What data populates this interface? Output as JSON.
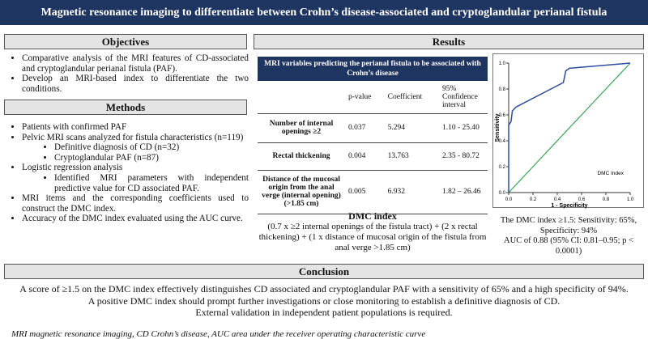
{
  "header": {
    "title": "Magnetic resonance imaging to differentiate between Crohn’s disease-associated and cryptoglandular perianal fistula"
  },
  "objectives": {
    "title": "Objectives",
    "items": [
      {
        "text": "Comparative analysis of the MRI features of CD-associated and cryptoglandular perianal fistula (PAF)."
      },
      {
        "text": "Develop an MRI-based index to differentiate the two conditions."
      }
    ]
  },
  "methods": {
    "title": "Methods",
    "items": [
      {
        "text": "Patients with confirmed PAF"
      },
      {
        "text": "Pelvic MRI scans analyzed for fistula characteristics (n=119)",
        "sub": [
          "Definitive diagnosis of CD (n=32)",
          "Cryptoglandular PAF (n=87)"
        ]
      },
      {
        "text": "Logistic regression analysis",
        "sub": [
          "Identified MRI parameters with independent predictive value for CD associated PAF."
        ]
      },
      {
        "text": "MRI items and the corresponding coefficients used to construct the DMC index."
      },
      {
        "text": "Accuracy of the DMC index evaluated using the AUC curve."
      }
    ]
  },
  "results": {
    "title": "Results",
    "table": {
      "title": "MRI variables predicting the perianal fistula to be associated with Crohn’s disease",
      "columns": [
        "p-value",
        "Coefficient",
        "95% Confidence interval"
      ],
      "rows": [
        [
          "Number of internal openings ≥2",
          "0.037",
          "5.294",
          "1.10 - 25.40"
        ],
        [
          "Rectal thickening",
          "0.004",
          "13.763",
          "2.35 - 80.72"
        ],
        [
          "Distance of the mucosal origin from the anal verge (internal opening) (>1.85 cm)",
          "0.005",
          "6.932",
          "1.82 – 26.46"
        ]
      ]
    },
    "dmc": {
      "title": "DMC index",
      "text": "(0.7 x ≥2 internal openings of the fistula tract) + (2 x rectal thickening) + (1 x distance of mucosal origin of the fistula from anal verge >1.85 cm)"
    },
    "roc_caption": [
      "The DMC index ≥1.5: Sensitivity: 65%, Specificity: 94%",
      "AUC of 0.88 (95% CI: 0.81–0.95; p < 0.0001)"
    ]
  },
  "chart_data": {
    "type": "line",
    "xlabel": "1 - Specificity",
    "ylabel": "Sensitivity",
    "xlim": [
      0,
      1
    ],
    "ylim": [
      0,
      1
    ],
    "xticks": [
      {
        "value": 0,
        "label": "0.0"
      },
      0.2,
      0.4,
      0.6,
      0.8,
      {
        "value": 1,
        "label": "1.0"
      }
    ],
    "yticks": [
      {
        "value": 0,
        "label": "0.0"
      },
      0.2,
      0.4,
      0.6,
      0.8,
      {
        "value": 1,
        "label": "1.0"
      }
    ],
    "series": [
      {
        "name": "DMC Index",
        "color": "#2f4da0",
        "x": [
          0,
          0,
          0.02,
          0.03,
          0.06,
          0.1,
          0.45,
          0.47,
          0.5,
          1
        ],
        "values": [
          0,
          0.52,
          0.55,
          0.63,
          0.66,
          0.68,
          0.85,
          0.94,
          0.96,
          1
        ]
      }
    ],
    "reference_color": "#3aa655"
  },
  "conclusion": {
    "title": "Conclusion",
    "lines": [
      "A score of ≥1.5 on the DMC index effectively distinguishes CD associated and cryptoglandular PAF with a sensitivity of 65% and a high specificity of 94%.",
      "A positive DMC index should prompt further investigations or close monitoring to establish a definitive diagnosis of CD.",
      "External validation in independent patient populations is required."
    ]
  },
  "footnote": "MRI magnetic resonance imaging, CD Crohn’s disease, AUC area under the receiver operating characteristic curve"
}
